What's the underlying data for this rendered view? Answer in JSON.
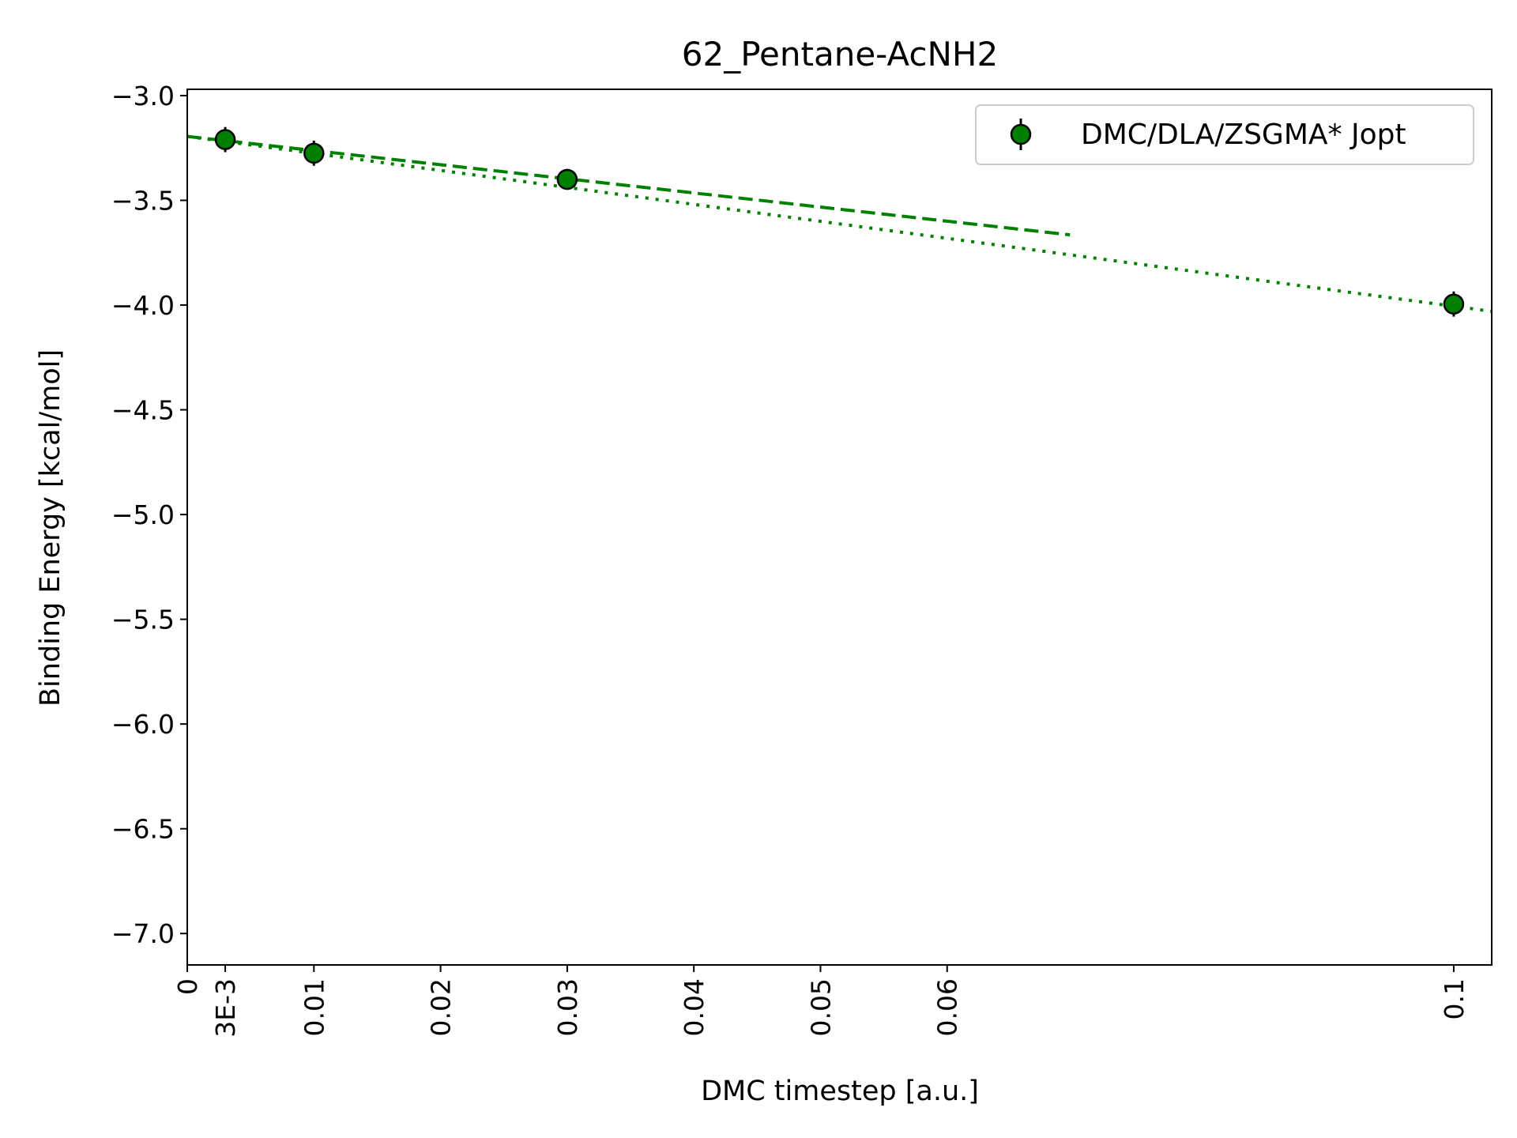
{
  "chart_data": {
    "type": "scatter",
    "title": "62_Pentane-AcNH2",
    "xlabel": "DMC timestep [a.u.]",
    "ylabel": "Binding Energy [kcal/mol]",
    "xlim": [
      0,
      0.103
    ],
    "ylim": [
      -7.15,
      -2.97
    ],
    "grid": false,
    "legend": {
      "position": "top-right"
    },
    "x_ticks": [
      {
        "value": 0,
        "label": "0"
      },
      {
        "value": 0.003,
        "label": "3E-3"
      },
      {
        "value": 0.01,
        "label": "0.01"
      },
      {
        "value": 0.02,
        "label": "0.02"
      },
      {
        "value": 0.03,
        "label": "0.03"
      },
      {
        "value": 0.04,
        "label": "0.04"
      },
      {
        "value": 0.05,
        "label": "0.05"
      },
      {
        "value": 0.06,
        "label": "0.06"
      },
      {
        "value": 0.1,
        "label": "0.1"
      }
    ],
    "y_ticks": [
      {
        "value": -3.0,
        "label": "−3.0"
      },
      {
        "value": -3.5,
        "label": "−3.5"
      },
      {
        "value": -4.0,
        "label": "−4.0"
      },
      {
        "value": -4.5,
        "label": "−4.5"
      },
      {
        "value": -5.0,
        "label": "−5.0"
      },
      {
        "value": -5.5,
        "label": "−5.5"
      },
      {
        "value": -6.0,
        "label": "−6.0"
      },
      {
        "value": -6.5,
        "label": "−6.5"
      },
      {
        "value": -7.0,
        "label": "−7.0"
      }
    ],
    "series": [
      {
        "name": "DMC/DLA/ZSGMA* Jopt",
        "color": "#008000",
        "marker": "circle",
        "x": [
          0.003,
          0.01,
          0.03,
          0.1
        ],
        "y": [
          -3.21,
          -3.275,
          -3.4,
          -3.995
        ],
        "yerr": [
          0.06,
          0.06,
          0.05,
          0.06
        ]
      }
    ],
    "fits": [
      {
        "style": "dashed",
        "color": "#008000",
        "x": [
          0,
          0.0697
        ],
        "y": [
          -3.195,
          -3.665
        ]
      },
      {
        "style": "dotted",
        "color": "#008000",
        "x": [
          0,
          0.103
        ],
        "y": [
          -3.195,
          -4.03
        ]
      }
    ]
  }
}
